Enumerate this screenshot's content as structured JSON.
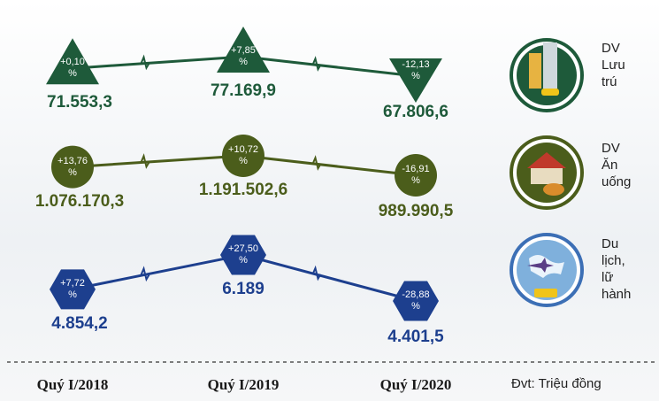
{
  "chart_data": {
    "type": "line",
    "categories": [
      "Quý I/2018",
      "Quý I/2019",
      "Quý I/2020"
    ],
    "unit_note": "Đvt: Triệu đồng",
    "series": [
      {
        "name": "DV Lưu trú",
        "color": "#1e5a3a",
        "marker": "triangle",
        "values": [
          71553.3,
          77169.9,
          67806.6
        ],
        "value_labels": [
          "71.553,3",
          "77.169,9",
          "67.806,6"
        ],
        "changes": [
          0.1,
          7.85,
          -12.13
        ],
        "change_labels": [
          "+0,10 %",
          "+7,85 %",
          "-12,13 %"
        ]
      },
      {
        "name": "DV Ăn uống",
        "color": "#4b5d1b",
        "marker": "circle",
        "values": [
          1076170.3,
          1191502.6,
          989990.5
        ],
        "value_labels": [
          "1.076.170,3",
          "1.191.502,6",
          "989.990,5"
        ],
        "changes": [
          13.76,
          10.72,
          -16.91
        ],
        "change_labels": [
          "+13,76 %",
          "+10,72 %",
          "-16,91 %"
        ]
      },
      {
        "name": "Du lịch, lữ hành",
        "color": "#1d3f8e",
        "marker": "hexagon",
        "values": [
          4854.2,
          6189,
          4401.5
        ],
        "value_labels": [
          "4.854,2",
          "6.189",
          "4.401,5"
        ],
        "changes": [
          7.72,
          27.5,
          -28.88
        ],
        "change_labels": [
          "+7,72 %",
          "+27,50 %",
          "-28,88 %"
        ]
      }
    ]
  }
}
